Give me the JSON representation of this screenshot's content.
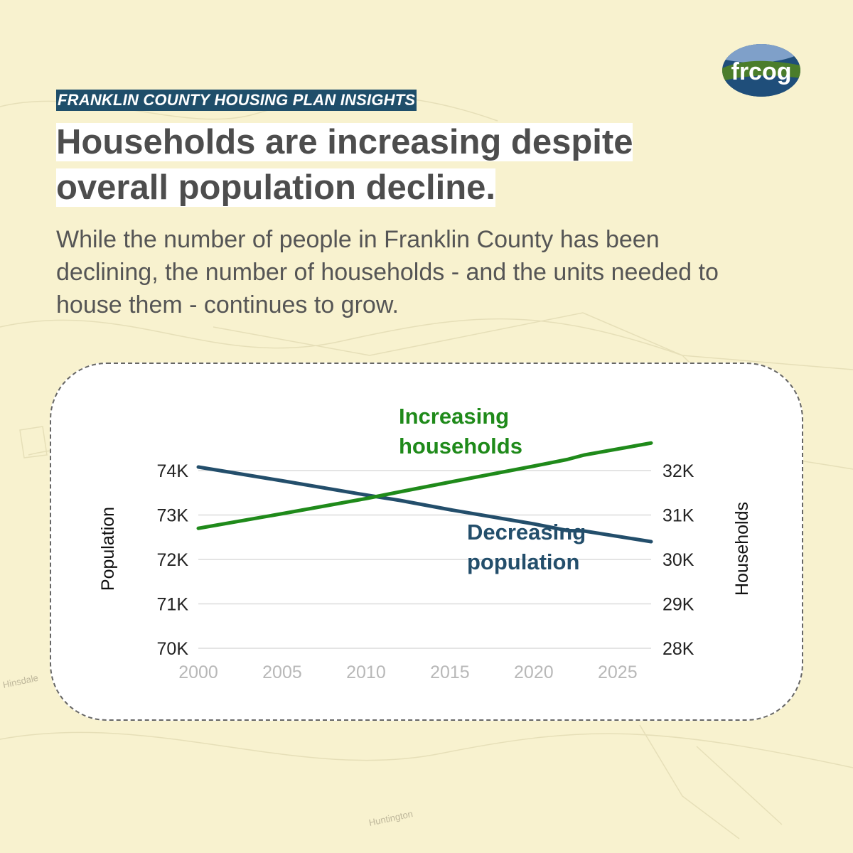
{
  "header": {
    "eyebrow": "FRANKLIN COUNTY HOUSING PLAN INSIGHTS",
    "headline_line1": "Households are increasing despite",
    "headline_line2": "overall population decline.",
    "subtitle": "While the number of people in Franklin County has been declining, the number of households - and the units needed to house them - continues to grow."
  },
  "logo": {
    "text": "frcog"
  },
  "map_labels": [
    "Hinsdale",
    "Huntington"
  ],
  "colors": {
    "households": "#1f8a1a",
    "population": "#234e6b",
    "eyebrow_bg": "#1f4e6a",
    "background": "#f8f2cf"
  },
  "chart_data": {
    "type": "line",
    "x": [
      2000,
      2005,
      2010,
      2012,
      2015,
      2020,
      2022,
      2023,
      2027
    ],
    "xticks": [
      "2000",
      "2005",
      "2010",
      "2015",
      "2020",
      "2025"
    ],
    "xlim": [
      2000,
      2027
    ],
    "ylabel_left": "Population",
    "ylabel_right": "Households",
    "yticks_left": [
      "70K",
      "71K",
      "72K",
      "73K",
      "74K"
    ],
    "yticks_right": [
      "28K",
      "29K",
      "30K",
      "31K",
      "32K"
    ],
    "ylim_left": [
      70000,
      74000
    ],
    "ylim_right": [
      28000,
      32000
    ],
    "grid": true,
    "series": [
      {
        "name": "Decreasing population",
        "axis": "left",
        "label_lines": [
          "Decreasing",
          "population"
        ],
        "values": [
          74080,
          73770,
          73450,
          73330,
          73120,
          72800,
          72650,
          72640,
          72400
        ]
      },
      {
        "name": "Increasing households",
        "axis": "right",
        "label_lines": [
          "Increasing",
          "households"
        ],
        "values": [
          30700,
          31030,
          31370,
          31520,
          31740,
          32100,
          32250,
          32350,
          32620
        ]
      }
    ]
  }
}
